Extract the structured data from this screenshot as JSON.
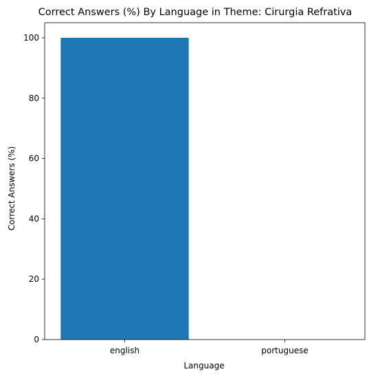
{
  "chart_data": {
    "type": "bar",
    "title": "Correct Answers (%) By Language in Theme: Cirurgia Refrativa",
    "xlabel": "Language",
    "ylabel": "Correct Answers (%)",
    "categories": [
      "english",
      "portuguese"
    ],
    "values": [
      100,
      0
    ],
    "ylim": [
      0,
      105
    ],
    "yticks": [
      0,
      20,
      40,
      60,
      80,
      100
    ],
    "grid": false,
    "legend": "none",
    "bar_color": "#1f77b4"
  }
}
